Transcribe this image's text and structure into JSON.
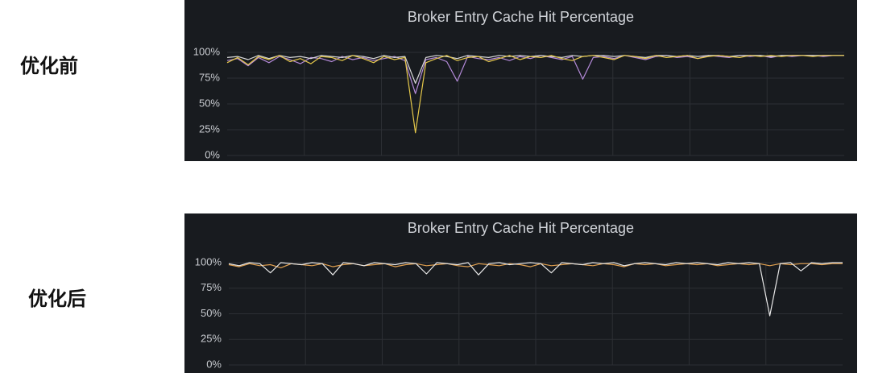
{
  "chart_data": [
    {
      "type": "line",
      "title": "Broker Entry Cache Hit Percentage",
      "annotation": "优化前",
      "ylim": [
        0,
        100
      ],
      "yticks": [
        {
          "value": 0,
          "label": "0%"
        },
        {
          "value": 25,
          "label": "25%"
        },
        {
          "value": 50,
          "label": "50%"
        },
        {
          "value": 75,
          "label": "75%"
        },
        {
          "value": 100,
          "label": "100%"
        }
      ],
      "grid": true,
      "series": [
        {
          "color": "#b48ad9",
          "values": [
            92,
            94,
            87,
            95,
            90,
            96,
            93,
            89,
            95,
            94,
            91,
            96,
            93,
            95,
            92,
            94,
            96,
            92,
            60,
            93,
            95,
            91,
            72,
            96,
            94,
            93,
            95,
            92,
            96,
            94,
            97,
            95,
            93,
            96,
            74,
            95,
            96,
            94,
            97,
            95,
            93,
            96,
            97,
            95,
            96,
            94,
            97,
            96,
            95,
            97,
            96,
            97,
            95,
            97,
            96,
            97,
            97,
            96,
            97,
            97
          ]
        },
        {
          "color": "#d8d8d8",
          "values": [
            95,
            96,
            93,
            97,
            94,
            97,
            95,
            96,
            94,
            97,
            96,
            95,
            97,
            96,
            94,
            97,
            95,
            96,
            70,
            95,
            97,
            96,
            94,
            97,
            96,
            95,
            97,
            96,
            97,
            96,
            97,
            96,
            95,
            97,
            96,
            97,
            97,
            96,
            97,
            96,
            95,
            97,
            97,
            96,
            97,
            96,
            97,
            97,
            96,
            97,
            97,
            97,
            96,
            97,
            97,
            97,
            97,
            97,
            97,
            97
          ]
        },
        {
          "color": "#e5c84a",
          "values": [
            90,
            95,
            88,
            96,
            93,
            97,
            91,
            94,
            89,
            96,
            95,
            92,
            97,
            94,
            90,
            96,
            93,
            95,
            22,
            90,
            94,
            97,
            92,
            95,
            96,
            91,
            94,
            97,
            93,
            96,
            95,
            97,
            94,
            92,
            96,
            97,
            95,
            93,
            97,
            96,
            94,
            97,
            95,
            96,
            97,
            94,
            96,
            97,
            96,
            95,
            97,
            96,
            97,
            96,
            97,
            97,
            96,
            97,
            97,
            97
          ]
        }
      ]
    },
    {
      "type": "line",
      "title": "Broker Entry Cache Hit Percentage",
      "annotation": "优化后",
      "ylim": [
        0,
        100
      ],
      "yticks": [
        {
          "value": 0,
          "label": "0%"
        },
        {
          "value": 25,
          "label": "25%"
        },
        {
          "value": 50,
          "label": "50%"
        },
        {
          "value": 75,
          "label": "75%"
        },
        {
          "value": 100,
          "label": "100%"
        }
      ],
      "grid": true,
      "series": [
        {
          "color": "#e0a050",
          "values": [
            98,
            96,
            99,
            97,
            98,
            95,
            99,
            98,
            97,
            99,
            96,
            98,
            99,
            97,
            98,
            99,
            96,
            98,
            99,
            97,
            98,
            99,
            97,
            96,
            99,
            98,
            97,
            99,
            98,
            96,
            99,
            97,
            98,
            99,
            98,
            97,
            99,
            98,
            96,
            99,
            98,
            99,
            97,
            98,
            99,
            98,
            99,
            97,
            98,
            99,
            98,
            99,
            97,
            99,
            98,
            99,
            99,
            98,
            99,
            99
          ]
        },
        {
          "color": "#e8e8e8",
          "values": [
            99,
            97,
            100,
            99,
            90,
            100,
            99,
            98,
            100,
            99,
            88,
            100,
            99,
            97,
            100,
            99,
            98,
            100,
            99,
            89,
            100,
            99,
            98,
            100,
            88,
            99,
            100,
            98,
            99,
            100,
            99,
            90,
            100,
            99,
            98,
            100,
            99,
            100,
            97,
            99,
            100,
            99,
            98,
            100,
            99,
            100,
            99,
            98,
            100,
            99,
            100,
            99,
            48,
            99,
            100,
            92,
            100,
            99,
            100,
            100
          ]
        }
      ]
    }
  ]
}
